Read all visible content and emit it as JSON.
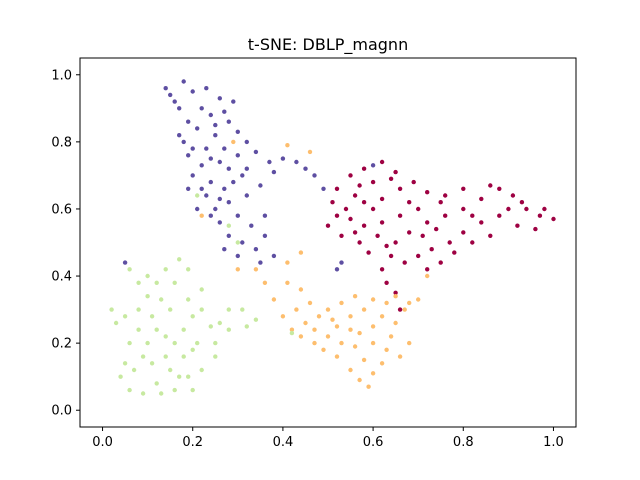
{
  "chart_data": {
    "type": "scatter",
    "title": "t-SNE: DBLP_magnn",
    "xlabel": "",
    "ylabel": "",
    "xlim": [
      -0.05,
      1.05
    ],
    "ylim": [
      -0.05,
      1.05
    ],
    "xticks": [
      0.0,
      0.2,
      0.4,
      0.6,
      0.8,
      1.0
    ],
    "yticks": [
      0.0,
      0.2,
      0.4,
      0.6,
      0.8,
      1.0
    ],
    "xtick_labels": [
      "0.0",
      "0.2",
      "0.4",
      "0.6",
      "0.8",
      "1.0"
    ],
    "ytick_labels": [
      "0.0",
      "0.2",
      "0.4",
      "0.6",
      "0.8",
      "1.0"
    ],
    "grid": false,
    "legend": "none",
    "series": [
      {
        "color": "#5e4fa2",
        "points": [
          [
            0.14,
            0.96
          ],
          [
            0.18,
            0.98
          ],
          [
            0.2,
            0.95
          ],
          [
            0.16,
            0.92
          ],
          [
            0.22,
            0.9
          ],
          [
            0.26,
            0.93
          ],
          [
            0.29,
            0.92
          ],
          [
            0.24,
            0.88
          ],
          [
            0.19,
            0.86
          ],
          [
            0.17,
            0.82
          ],
          [
            0.21,
            0.84
          ],
          [
            0.25,
            0.82
          ],
          [
            0.28,
            0.86
          ],
          [
            0.3,
            0.83
          ],
          [
            0.32,
            0.8
          ],
          [
            0.27,
            0.78
          ],
          [
            0.23,
            0.78
          ],
          [
            0.19,
            0.76
          ],
          [
            0.22,
            0.73
          ],
          [
            0.26,
            0.74
          ],
          [
            0.3,
            0.76
          ],
          [
            0.34,
            0.77
          ],
          [
            0.37,
            0.74
          ],
          [
            0.4,
            0.75
          ],
          [
            0.43,
            0.74
          ],
          [
            0.45,
            0.72
          ],
          [
            0.47,
            0.7
          ],
          [
            0.2,
            0.7
          ],
          [
            0.24,
            0.68
          ],
          [
            0.19,
            0.66
          ],
          [
            0.23,
            0.64
          ],
          [
            0.27,
            0.66
          ],
          [
            0.21,
            0.6
          ],
          [
            0.25,
            0.6
          ],
          [
            0.28,
            0.62
          ],
          [
            0.32,
            0.64
          ],
          [
            0.35,
            0.67
          ],
          [
            0.3,
            0.58
          ],
          [
            0.26,
            0.56
          ],
          [
            0.33,
            0.55
          ],
          [
            0.36,
            0.58
          ],
          [
            0.28,
            0.52
          ],
          [
            0.31,
            0.5
          ],
          [
            0.34,
            0.48
          ],
          [
            0.36,
            0.52
          ],
          [
            0.38,
            0.46
          ],
          [
            0.35,
            0.44
          ],
          [
            0.3,
            0.46
          ],
          [
            0.27,
            0.48
          ],
          [
            0.17,
            0.9
          ],
          [
            0.15,
            0.94
          ],
          [
            0.23,
            0.96
          ],
          [
            0.27,
            0.89
          ],
          [
            0.25,
            0.85
          ],
          [
            0.18,
            0.8
          ],
          [
            0.2,
            0.78
          ],
          [
            0.24,
            0.75
          ],
          [
            0.28,
            0.72
          ],
          [
            0.31,
            0.7
          ],
          [
            0.29,
            0.68
          ],
          [
            0.22,
            0.66
          ],
          [
            0.26,
            0.63
          ],
          [
            0.24,
            0.58
          ],
          [
            0.52,
            0.42
          ],
          [
            0.53,
            0.44
          ],
          [
            0.05,
            0.44
          ],
          [
            0.6,
            0.73
          ],
          [
            0.49,
            0.66
          ],
          [
            0.32,
            0.72
          ],
          [
            0.38,
            0.71
          ]
        ]
      },
      {
        "color": "#9e0142",
        "points": [
          [
            0.55,
            0.7
          ],
          [
            0.58,
            0.72
          ],
          [
            0.62,
            0.74
          ],
          [
            0.65,
            0.71
          ],
          [
            0.6,
            0.68
          ],
          [
            0.56,
            0.64
          ],
          [
            0.52,
            0.66
          ],
          [
            0.54,
            0.6
          ],
          [
            0.58,
            0.62
          ],
          [
            0.62,
            0.63
          ],
          [
            0.66,
            0.66
          ],
          [
            0.69,
            0.68
          ],
          [
            0.72,
            0.65
          ],
          [
            0.75,
            0.62
          ],
          [
            0.7,
            0.6
          ],
          [
            0.66,
            0.58
          ],
          [
            0.62,
            0.56
          ],
          [
            0.58,
            0.55
          ],
          [
            0.55,
            0.57
          ],
          [
            0.52,
            0.58
          ],
          [
            0.5,
            0.55
          ],
          [
            0.53,
            0.52
          ],
          [
            0.57,
            0.5
          ],
          [
            0.61,
            0.52
          ],
          [
            0.65,
            0.5
          ],
          [
            0.68,
            0.53
          ],
          [
            0.72,
            0.56
          ],
          [
            0.76,
            0.58
          ],
          [
            0.8,
            0.6
          ],
          [
            0.84,
            0.63
          ],
          [
            0.88,
            0.66
          ],
          [
            0.91,
            0.64
          ],
          [
            0.94,
            0.6
          ],
          [
            0.97,
            0.58
          ],
          [
            1.0,
            0.57
          ],
          [
            0.96,
            0.54
          ],
          [
            0.92,
            0.55
          ],
          [
            0.88,
            0.58
          ],
          [
            0.84,
            0.56
          ],
          [
            0.8,
            0.53
          ],
          [
            0.77,
            0.5
          ],
          [
            0.73,
            0.48
          ],
          [
            0.7,
            0.46
          ],
          [
            0.67,
            0.44
          ],
          [
            0.64,
            0.46
          ],
          [
            0.62,
            0.42
          ],
          [
            0.63,
            0.38
          ],
          [
            0.65,
            0.35
          ],
          [
            0.75,
            0.44
          ],
          [
            0.72,
            0.42
          ],
          [
            0.78,
            0.47
          ],
          [
            0.82,
            0.5
          ],
          [
            0.86,
            0.52
          ],
          [
            0.9,
            0.6
          ],
          [
            0.86,
            0.67
          ],
          [
            0.8,
            0.66
          ],
          [
            0.76,
            0.64
          ],
          [
            0.68,
            0.62
          ],
          [
            0.6,
            0.6
          ],
          [
            0.56,
            0.53
          ],
          [
            0.59,
            0.47
          ],
          [
            0.63,
            0.49
          ],
          [
            0.71,
            0.52
          ],
          [
            0.74,
            0.54
          ],
          [
            0.82,
            0.58
          ],
          [
            0.93,
            0.62
          ],
          [
            0.98,
            0.6
          ],
          [
            0.64,
            0.69
          ],
          [
            0.57,
            0.67
          ],
          [
            0.51,
            0.62
          ],
          [
            0.66,
            0.3
          ]
        ]
      },
      {
        "color": "#fdbe6e",
        "points": [
          [
            0.42,
            0.24
          ],
          [
            0.45,
            0.26
          ],
          [
            0.48,
            0.28
          ],
          [
            0.44,
            0.22
          ],
          [
            0.47,
            0.2
          ],
          [
            0.5,
            0.22
          ],
          [
            0.52,
            0.25
          ],
          [
            0.55,
            0.28
          ],
          [
            0.53,
            0.32
          ],
          [
            0.56,
            0.34
          ],
          [
            0.5,
            0.3
          ],
          [
            0.46,
            0.32
          ],
          [
            0.44,
            0.36
          ],
          [
            0.41,
            0.38
          ],
          [
            0.43,
            0.3
          ],
          [
            0.49,
            0.18
          ],
          [
            0.52,
            0.16
          ],
          [
            0.55,
            0.12
          ],
          [
            0.57,
            0.09
          ],
          [
            0.6,
            0.11
          ],
          [
            0.58,
            0.15
          ],
          [
            0.56,
            0.19
          ],
          [
            0.6,
            0.2
          ],
          [
            0.63,
            0.18
          ],
          [
            0.66,
            0.16
          ],
          [
            0.68,
            0.2
          ],
          [
            0.64,
            0.22
          ],
          [
            0.6,
            0.25
          ],
          [
            0.62,
            0.28
          ],
          [
            0.65,
            0.26
          ],
          [
            0.67,
            0.3
          ],
          [
            0.63,
            0.32
          ],
          [
            0.6,
            0.33
          ],
          [
            0.58,
            0.3
          ],
          [
            0.55,
            0.24
          ],
          [
            0.53,
            0.2
          ],
          [
            0.59,
            0.07
          ],
          [
            0.62,
            0.14
          ],
          [
            0.57,
            0.23
          ],
          [
            0.51,
            0.27
          ],
          [
            0.47,
            0.24
          ],
          [
            0.4,
            0.28
          ],
          [
            0.38,
            0.33
          ],
          [
            0.36,
            0.38
          ],
          [
            0.34,
            0.42
          ],
          [
            0.3,
            0.42
          ],
          [
            0.68,
            0.32
          ],
          [
            0.7,
            0.33
          ],
          [
            0.65,
            0.34
          ],
          [
            0.72,
            0.4
          ],
          [
            0.44,
            0.47
          ],
          [
            0.41,
            0.44
          ],
          [
            0.46,
            0.77
          ],
          [
            0.41,
            0.79
          ],
          [
            0.29,
            0.8
          ],
          [
            0.22,
            0.58
          ]
        ]
      },
      {
        "color": "#c7e9a0",
        "points": [
          [
            0.02,
            0.3
          ],
          [
            0.05,
            0.28
          ],
          [
            0.08,
            0.3
          ],
          [
            0.1,
            0.34
          ],
          [
            0.12,
            0.38
          ],
          [
            0.14,
            0.42
          ],
          [
            0.17,
            0.45
          ],
          [
            0.19,
            0.42
          ],
          [
            0.16,
            0.38
          ],
          [
            0.13,
            0.33
          ],
          [
            0.11,
            0.28
          ],
          [
            0.08,
            0.24
          ],
          [
            0.06,
            0.2
          ],
          [
            0.1,
            0.2
          ],
          [
            0.14,
            0.22
          ],
          [
            0.18,
            0.24
          ],
          [
            0.2,
            0.28
          ],
          [
            0.22,
            0.3
          ],
          [
            0.24,
            0.25
          ],
          [
            0.21,
            0.2
          ],
          [
            0.18,
            0.16
          ],
          [
            0.15,
            0.12
          ],
          [
            0.12,
            0.08
          ],
          [
            0.09,
            0.05
          ],
          [
            0.06,
            0.06
          ],
          [
            0.04,
            0.1
          ],
          [
            0.07,
            0.12
          ],
          [
            0.11,
            0.14
          ],
          [
            0.14,
            0.16
          ],
          [
            0.17,
            0.1
          ],
          [
            0.13,
            0.05
          ],
          [
            0.16,
            0.06
          ],
          [
            0.19,
            0.1
          ],
          [
            0.22,
            0.12
          ],
          [
            0.25,
            0.16
          ],
          [
            0.2,
            0.06
          ],
          [
            0.08,
            0.38
          ],
          [
            0.06,
            0.42
          ],
          [
            0.1,
            0.4
          ],
          [
            0.15,
            0.3
          ],
          [
            0.19,
            0.33
          ],
          [
            0.22,
            0.36
          ],
          [
            0.26,
            0.26
          ],
          [
            0.28,
            0.24
          ],
          [
            0.32,
            0.25
          ],
          [
            0.34,
            0.27
          ],
          [
            0.31,
            0.3
          ],
          [
            0.28,
            0.3
          ],
          [
            0.03,
            0.26
          ],
          [
            0.12,
            0.24
          ],
          [
            0.16,
            0.2
          ],
          [
            0.2,
            0.18
          ],
          [
            0.25,
            0.2
          ],
          [
            0.09,
            0.16
          ],
          [
            0.05,
            0.14
          ],
          [
            0.3,
            0.5
          ],
          [
            0.28,
            0.55
          ],
          [
            0.42,
            0.23
          ],
          [
            0.21,
            0.64
          ]
        ]
      }
    ]
  }
}
